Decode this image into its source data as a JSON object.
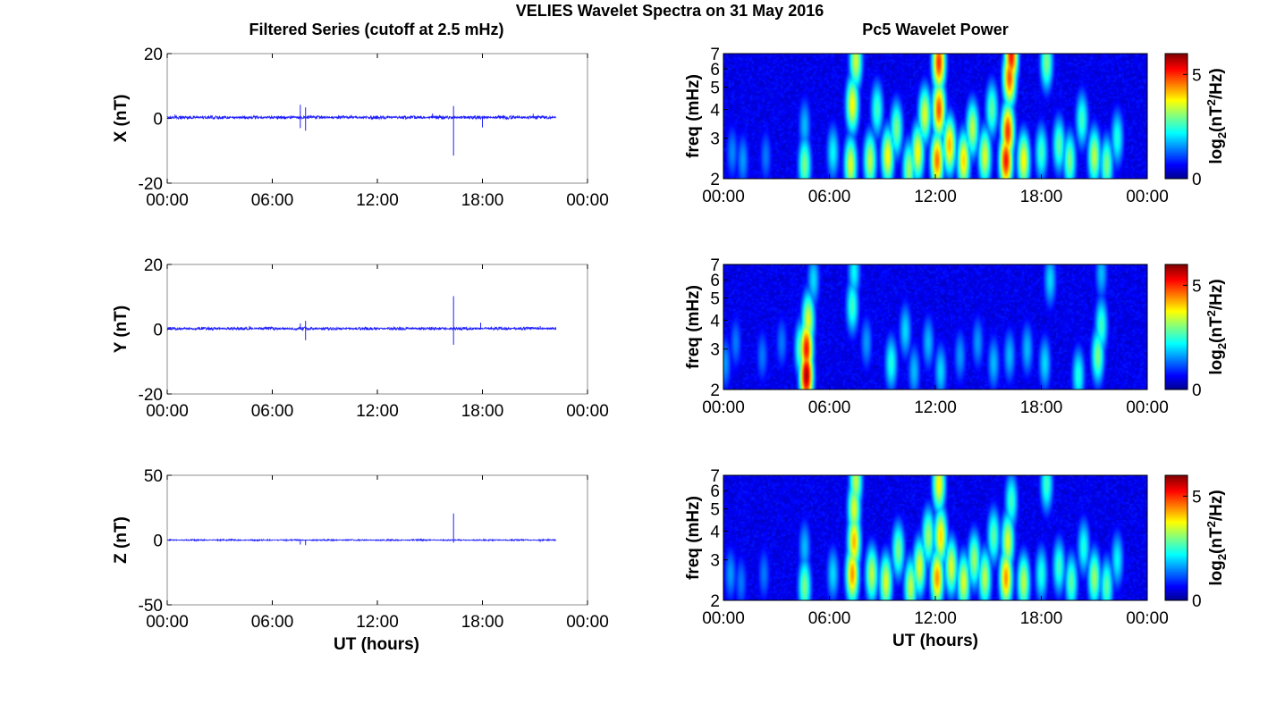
{
  "figure": {
    "title": "VELIES Wavelet Spectra on 31 May 2016",
    "left_column_title": "Filtered Series (cutoff at 2.5 mHz)",
    "right_column_title": "Pc5 Wavelet Power",
    "xlabel": "UT (hours)"
  },
  "colors": {
    "trace": "#1f1fff",
    "background_low": "#00008f",
    "axis": "#000000",
    "frame": "#8c8c8c"
  },
  "chart_data": [
    {
      "type": "line",
      "ylabel": "X (nT)",
      "x_ticks": [
        "00:00",
        "06:00",
        "12:00",
        "18:00",
        "00:00"
      ],
      "xlim_hours": [
        0,
        24
      ],
      "ylim": [
        -20,
        20
      ],
      "y_ticks": [
        "20",
        "0",
        "-20"
      ],
      "series": [
        {
          "baseline": 0.3,
          "noise": 0.4,
          "spikes": [
            {
              "t": 0.45,
              "v": 1.2
            },
            {
              "t": 7.6,
              "v": 4.2
            },
            {
              "t": 7.6,
              "v": -3.0
            },
            {
              "t": 7.9,
              "v": 3.4
            },
            {
              "t": 7.9,
              "v": -3.8
            },
            {
              "t": 10.5,
              "v": 1.0
            },
            {
              "t": 15.15,
              "v": 1.5
            },
            {
              "t": 16.35,
              "v": 3.8
            },
            {
              "t": 16.35,
              "v": -11.5
            },
            {
              "t": 18.0,
              "v": -2.8
            },
            {
              "t": 20.9,
              "v": 1.4
            }
          ]
        }
      ]
    },
    {
      "type": "line",
      "ylabel": "Y (nT)",
      "x_ticks": [
        "00:00",
        "06:00",
        "12:00",
        "18:00",
        "00:00"
      ],
      "xlim_hours": [
        0,
        24
      ],
      "ylim": [
        -20,
        20
      ],
      "y_ticks": [
        "20",
        "0",
        "-20"
      ],
      "series": [
        {
          "baseline": 0.2,
          "noise": 0.35,
          "spikes": [
            {
              "t": 4.7,
              "v": 1.0
            },
            {
              "t": 7.6,
              "v": 1.8
            },
            {
              "t": 7.9,
              "v": 2.6
            },
            {
              "t": 7.9,
              "v": -3.4
            },
            {
              "t": 16.35,
              "v": 10.2
            },
            {
              "t": 16.35,
              "v": -4.8
            },
            {
              "t": 17.9,
              "v": 2.0
            },
            {
              "t": 21.3,
              "v": 1.0
            }
          ]
        }
      ]
    },
    {
      "type": "line",
      "ylabel": "Z (nT)",
      "x_ticks": [
        "00:00",
        "06:00",
        "12:00",
        "18:00",
        "00:00"
      ],
      "xlim_hours": [
        0,
        24
      ],
      "ylim": [
        -50,
        50
      ],
      "y_ticks": [
        "50",
        "0",
        "-50"
      ],
      "series": [
        {
          "baseline": 0.0,
          "noise": 0.4,
          "spikes": [
            {
              "t": 7.6,
              "v": -3.5
            },
            {
              "t": 7.9,
              "v": -4.0
            },
            {
              "t": 16.35,
              "v": 20.5
            },
            {
              "t": 16.35,
              "v": -2.0
            },
            {
              "t": 21.3,
              "v": -1.5
            }
          ]
        }
      ]
    },
    {
      "type": "heatmap",
      "ylabel": "freq (mHz)",
      "x_ticks": [
        "00:00",
        "06:00",
        "12:00",
        "18:00",
        "00:00"
      ],
      "xlim_hours": [
        0,
        24
      ],
      "y_scale": "log",
      "ylim_mHz": [
        2,
        7
      ],
      "y_ticks": [
        "7",
        "6",
        "5",
        "4",
        "3",
        "2"
      ],
      "colorbar_label": "log2(nT2/Hz)",
      "colorbar_ticks": [
        "5",
        "0"
      ],
      "clim": [
        0,
        6
      ],
      "bursts": [
        [
          0.5,
          2.6,
          1.5
        ],
        [
          1.1,
          2.4,
          1.6
        ],
        [
          2.4,
          2.5,
          1.4
        ],
        [
          4.6,
          2.3,
          3.0
        ],
        [
          4.6,
          3.4,
          1.8
        ],
        [
          6.2,
          2.6,
          2.2
        ],
        [
          7.2,
          2.3,
          3.6
        ],
        [
          7.3,
          4.2,
          3.8
        ],
        [
          7.5,
          6.5,
          3.5
        ],
        [
          8.3,
          2.4,
          3.4
        ],
        [
          8.7,
          4.0,
          2.6
        ],
        [
          9.3,
          2.5,
          3.8
        ],
        [
          9.8,
          3.3,
          3.0
        ],
        [
          10.5,
          2.2,
          3.2
        ],
        [
          11.0,
          2.6,
          3.8
        ],
        [
          11.4,
          3.8,
          3.6
        ],
        [
          12.1,
          2.4,
          4.6
        ],
        [
          12.2,
          4.0,
          4.8
        ],
        [
          12.2,
          6.4,
          5.0
        ],
        [
          12.8,
          2.8,
          4.2
        ],
        [
          13.6,
          2.4,
          4.0
        ],
        [
          14.1,
          3.3,
          3.4
        ],
        [
          14.8,
          2.5,
          3.6
        ],
        [
          15.2,
          4.0,
          2.8
        ],
        [
          16.0,
          2.4,
          5.2
        ],
        [
          16.1,
          3.2,
          5.0
        ],
        [
          16.2,
          5.5,
          4.8
        ],
        [
          16.3,
          6.8,
          5.2
        ],
        [
          17.0,
          2.4,
          3.8
        ],
        [
          18.0,
          2.6,
          2.6
        ],
        [
          18.3,
          6.4,
          3.0
        ],
        [
          19.0,
          2.8,
          2.8
        ],
        [
          19.6,
          2.4,
          3.0
        ],
        [
          20.3,
          3.6,
          2.6
        ],
        [
          21.0,
          2.5,
          3.4
        ],
        [
          21.7,
          2.3,
          3.0
        ],
        [
          22.3,
          3.0,
          2.4
        ]
      ]
    },
    {
      "type": "heatmap",
      "ylabel": "freq (mHz)",
      "x_ticks": [
        "00:00",
        "06:00",
        "12:00",
        "18:00",
        "00:00"
      ],
      "xlim_hours": [
        0,
        24
      ],
      "y_scale": "log",
      "ylim_mHz": [
        2,
        7
      ],
      "y_ticks": [
        "7",
        "6",
        "5",
        "4",
        "3",
        "2"
      ],
      "colorbar_label": "log2(nT2/Hz)",
      "colorbar_ticks": [
        "5",
        "0"
      ],
      "clim": [
        0,
        6
      ],
      "bursts": [
        [
          0.1,
          2.6,
          1.6
        ],
        [
          0.7,
          3.2,
          1.4
        ],
        [
          2.2,
          2.8,
          1.4
        ],
        [
          3.3,
          3.2,
          1.4
        ],
        [
          4.4,
          3.0,
          3.0
        ],
        [
          4.7,
          2.3,
          5.8
        ],
        [
          4.7,
          3.0,
          5.2
        ],
        [
          4.8,
          4.0,
          3.6
        ],
        [
          5.1,
          6.0,
          2.0
        ],
        [
          7.3,
          4.6,
          2.6
        ],
        [
          7.4,
          6.5,
          2.2
        ],
        [
          8.1,
          3.2,
          1.6
        ],
        [
          9.5,
          2.6,
          2.4
        ],
        [
          10.3,
          3.6,
          2.0
        ],
        [
          10.8,
          2.4,
          1.8
        ],
        [
          11.6,
          3.2,
          1.8
        ],
        [
          12.3,
          2.4,
          2.0
        ],
        [
          13.4,
          2.8,
          1.6
        ],
        [
          14.4,
          3.2,
          1.6
        ],
        [
          15.3,
          2.6,
          1.8
        ],
        [
          16.2,
          2.8,
          1.8
        ],
        [
          17.2,
          3.0,
          1.8
        ],
        [
          18.2,
          2.6,
          2.0
        ],
        [
          18.5,
          6.0,
          2.0
        ],
        [
          20.1,
          2.3,
          2.4
        ],
        [
          21.2,
          2.8,
          3.0
        ],
        [
          21.4,
          3.8,
          2.6
        ],
        [
          21.4,
          6.4,
          1.8
        ]
      ]
    },
    {
      "type": "heatmap",
      "ylabel": "freq (mHz)",
      "x_ticks": [
        "00:00",
        "06:00",
        "12:00",
        "18:00",
        "00:00"
      ],
      "xlim_hours": [
        0,
        24
      ],
      "y_scale": "log",
      "ylim_mHz": [
        2,
        7
      ],
      "y_ticks": [
        "7",
        "6",
        "5",
        "4",
        "3",
        "2"
      ],
      "colorbar_label": "log2(nT2/Hz)",
      "colorbar_ticks": [
        "5",
        "0"
      ],
      "clim": [
        0,
        6
      ],
      "bursts": [
        [
          0.4,
          2.6,
          1.6
        ],
        [
          1.0,
          2.4,
          1.4
        ],
        [
          2.3,
          2.6,
          1.4
        ],
        [
          4.6,
          2.3,
          3.0
        ],
        [
          4.6,
          3.4,
          1.8
        ],
        [
          6.2,
          2.6,
          2.0
        ],
        [
          7.3,
          2.6,
          4.4
        ],
        [
          7.4,
          3.6,
          4.2
        ],
        [
          7.4,
          5.0,
          3.6
        ],
        [
          7.5,
          6.6,
          3.4
        ],
        [
          8.4,
          2.6,
          3.4
        ],
        [
          9.2,
          2.4,
          3.6
        ],
        [
          9.9,
          3.3,
          3.0
        ],
        [
          10.6,
          2.3,
          3.4
        ],
        [
          11.1,
          2.8,
          3.6
        ],
        [
          11.6,
          3.8,
          3.2
        ],
        [
          12.1,
          2.5,
          4.4
        ],
        [
          12.3,
          3.8,
          4.0
        ],
        [
          12.2,
          6.4,
          3.8
        ],
        [
          12.9,
          2.8,
          3.6
        ],
        [
          13.6,
          2.4,
          3.6
        ],
        [
          14.2,
          3.0,
          3.2
        ],
        [
          14.8,
          2.5,
          3.4
        ],
        [
          15.3,
          3.8,
          2.8
        ],
        [
          16.0,
          2.5,
          4.4
        ],
        [
          16.1,
          3.6,
          3.6
        ],
        [
          16.3,
          5.4,
          2.6
        ],
        [
          17.0,
          2.4,
          3.4
        ],
        [
          18.0,
          2.6,
          2.4
        ],
        [
          18.3,
          6.4,
          2.6
        ],
        [
          19.0,
          2.8,
          2.6
        ],
        [
          19.7,
          2.4,
          2.8
        ],
        [
          20.4,
          3.4,
          2.4
        ],
        [
          21.0,
          2.5,
          3.2
        ],
        [
          21.7,
          2.3,
          2.8
        ],
        [
          22.3,
          3.0,
          2.2
        ]
      ]
    }
  ]
}
